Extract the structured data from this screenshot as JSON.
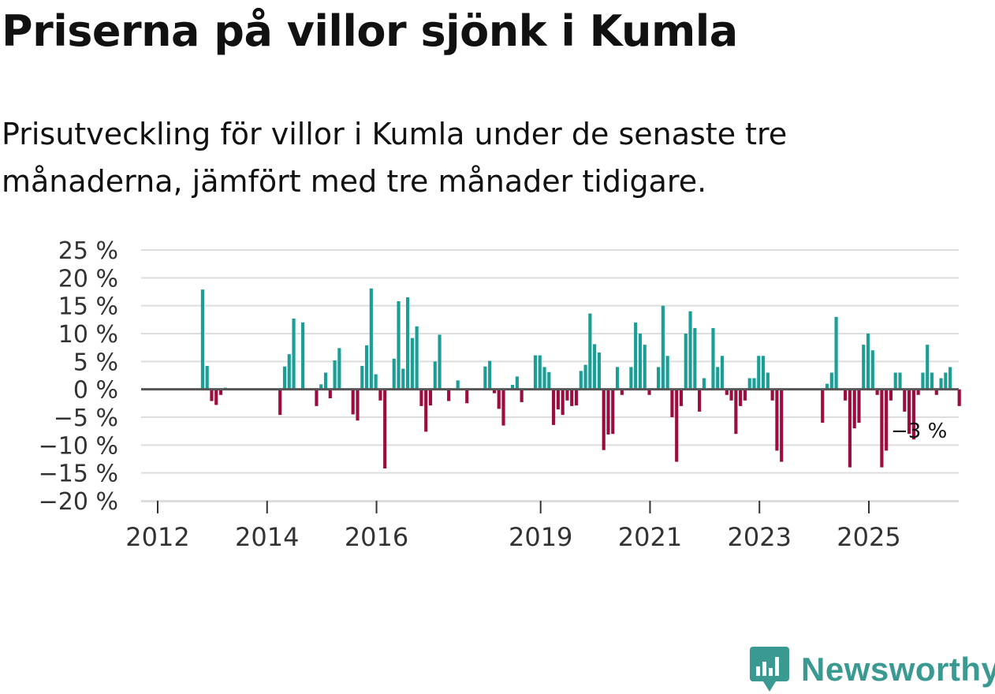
{
  "title": "Priserna på villor sjönk i Kumla",
  "subtitle": "Prisutveckling för villor i Kumla under de senaste tre månaderna, jämfört med tre månader tidigare.",
  "brand": {
    "name": "Newsworthy",
    "icon": "newsworthy-logo-icon"
  },
  "colors": {
    "positive": "#1a9e96",
    "negative": "#9c0c3f",
    "grid": "#dddddd",
    "zero_line": "#555555",
    "brand": "#3a9a92"
  },
  "chart_data": {
    "type": "bar",
    "title": "Priserna på villor sjönk i Kumla",
    "ylabel": "",
    "xlabel": "",
    "ylim": [
      -20,
      25
    ],
    "yticks": [
      25,
      20,
      15,
      10,
      5,
      0,
      -5,
      -10,
      -15,
      -20
    ],
    "ytick_labels": [
      "25 %",
      "20 %",
      "15 %",
      "10 %",
      "5 %",
      "0 %",
      "−5 %",
      "−10 %",
      "−15 %",
      "−20 %"
    ],
    "x_start": 2012.0,
    "x_step": 0.08333,
    "xticks": [
      2012,
      2014,
      2016,
      2019,
      2021,
      2023,
      2025
    ],
    "xtick_labels": [
      "2012",
      "2014",
      "2016",
      "2019",
      "2021",
      "2023",
      "2025"
    ],
    "annotation": "−3 %",
    "unit": "%",
    "values": [
      null,
      null,
      null,
      null,
      null,
      17.9,
      4.2,
      -2.1,
      -2.8,
      -1.0,
      0.3,
      null,
      null,
      null,
      null,
      null,
      null,
      null,
      null,
      null,
      null,
      null,
      -4.6,
      4.1,
      6.3,
      12.7,
      null,
      12.0,
      null,
      null,
      -3.0,
      0.9,
      3.0,
      -1.6,
      5.2,
      7.4,
      null,
      null,
      -4.5,
      -5.6,
      4.2,
      7.9,
      18.1,
      2.7,
      -2.0,
      -14.2,
      null,
      5.5,
      15.8,
      3.7,
      16.5,
      9.2,
      11.3,
      -3.0,
      -7.6,
      -2.9,
      5.0,
      9.8,
      null,
      -2.1,
      null,
      1.6,
      null,
      -2.5,
      null,
      null,
      null,
      4.1,
      5.1,
      -0.7,
      -3.5,
      -6.5,
      null,
      0.8,
      2.3,
      -2.3,
      null,
      null,
      6.1,
      6.1,
      4.0,
      3.1,
      -6.4,
      -3.6,
      -4.6,
      -2.0,
      -3.0,
      -2.9,
      3.3,
      4.4,
      13.6,
      8.1,
      6.6,
      -10.9,
      -8.1,
      -8.0,
      4.0,
      -1.0,
      null,
      4.0,
      12.0,
      10.0,
      8.0,
      -1.0,
      null,
      4.0,
      15.0,
      6.0,
      -5.0,
      -13.0,
      -3.0,
      10.0,
      14.0,
      11.0,
      -4.0,
      2.0,
      null,
      11.0,
      4.0,
      6.0,
      -1.0,
      -2.0,
      -8.0,
      -3.0,
      -2.0,
      2.0,
      2.0,
      6.0,
      6.0,
      3.0,
      -2.0,
      -11.0,
      -13.0,
      null,
      null,
      null,
      null,
      null,
      null,
      null,
      null,
      -6.0,
      1.0,
      3.0,
      13.0,
      null,
      -2.0,
      -14.0,
      -7.0,
      -6.0,
      8.0,
      10.0,
      7.0,
      -1.0,
      -14.0,
      -11.0,
      -2.0,
      3.0,
      3.0,
      -4.0,
      -8.0,
      -9.0,
      -1.0,
      3.0,
      8.0,
      3.0,
      -1.0,
      2.0,
      3.0,
      4.0,
      null,
      -3.0
    ]
  }
}
